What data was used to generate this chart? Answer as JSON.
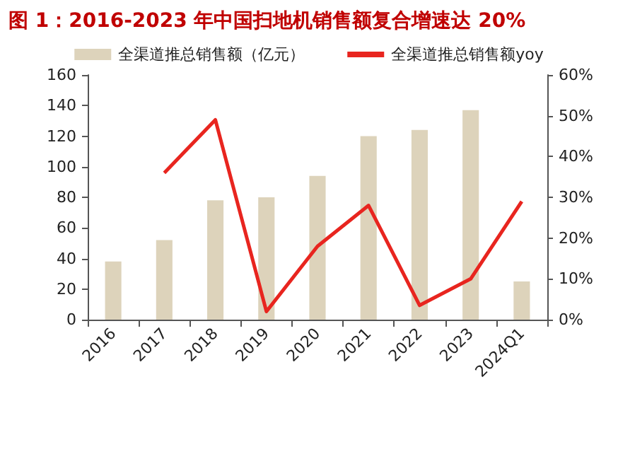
{
  "chart_data": {
    "type": "bar",
    "title": "图 1：2016-2023 年中国扫地机销售额复合增速达 20%",
    "categories": [
      "2016",
      "2017",
      "2018",
      "2019",
      "2020",
      "2021",
      "2022",
      "2023",
      "2024Q1"
    ],
    "series": [
      {
        "name": "全渠道推总销售额（亿元）",
        "color": "#ddd3bb",
        "values": [
          38,
          52,
          78,
          80,
          94,
          120,
          124,
          137,
          25
        ]
      },
      {
        "name": "全渠道推总销售额yoy",
        "type": "line",
        "axis": "y2",
        "color": "#e8251f",
        "values": [
          null,
          36,
          49,
          2,
          18,
          28,
          3.5,
          10,
          29
        ]
      }
    ],
    "ylim": [
      0,
      160
    ],
    "yticks": [
      0,
      20,
      40,
      60,
      80,
      100,
      120,
      140,
      160
    ],
    "y2lim": [
      0,
      60
    ],
    "y2ticks": [
      {
        "value": 0,
        "label": "0%"
      },
      {
        "value": 10,
        "label": "10%"
      },
      {
        "value": 20,
        "label": "20%"
      },
      {
        "value": 30,
        "label": "30%"
      },
      {
        "value": 40,
        "label": "40%"
      },
      {
        "value": 50,
        "label": "50%"
      },
      {
        "value": 60,
        "label": "60%"
      }
    ],
    "grid": false,
    "legend": "top",
    "marker": "none",
    "line_style": "solid"
  }
}
